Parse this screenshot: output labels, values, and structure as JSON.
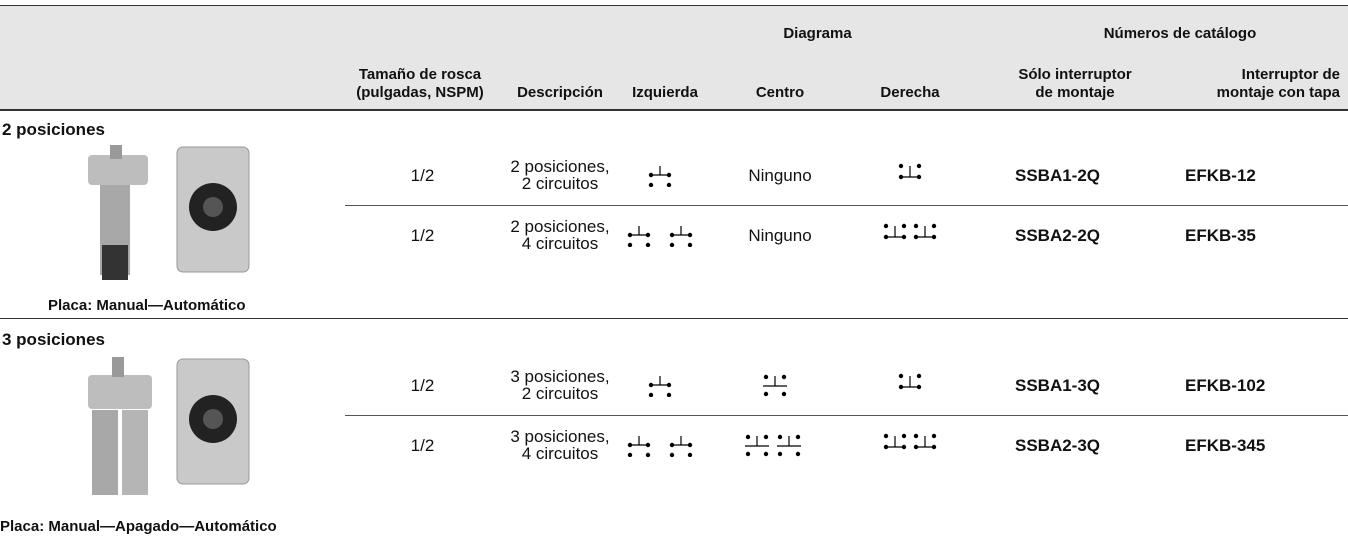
{
  "table": {
    "group_headers": [
      "Diagrama",
      "Números de catálogo"
    ],
    "columns": [
      "Tamaño de rosca\n(pulgadas, NSPM)",
      "Descripción",
      "Izquierda",
      "Centro",
      "Derecha",
      "Sólo interruptor\nde montaje",
      "Interruptor de\nmontaje con tapa"
    ],
    "sections": [
      {
        "title": "2 posiciones",
        "caption": "Placa: Manual—Automático",
        "rows": [
          {
            "thread": "1/2",
            "description": "2 posiciones,\n2 circuitos",
            "center": "Ninguno",
            "switch_only": "SSBA1-2Q",
            "with_cover": "EFKB-12"
          },
          {
            "thread": "1/2",
            "description": "2 posiciones,\n4 circuitos",
            "center": "Ninguno",
            "switch_only": "SSBA2-2Q",
            "with_cover": "EFKB-35"
          }
        ]
      },
      {
        "title": "3 posiciones",
        "caption": "Placa: Manual—Apagado—Automático",
        "rows": [
          {
            "thread": "1/2",
            "description": "3 posiciones,\n2 circuitos",
            "switch_only": "SSBA1-3Q",
            "with_cover": "EFKB-102"
          },
          {
            "thread": "1/2",
            "description": "3 posiciones,\n4 circuitos",
            "switch_only": "SSBA2-3Q",
            "with_cover": "EFKB-345"
          }
        ]
      }
    ]
  }
}
